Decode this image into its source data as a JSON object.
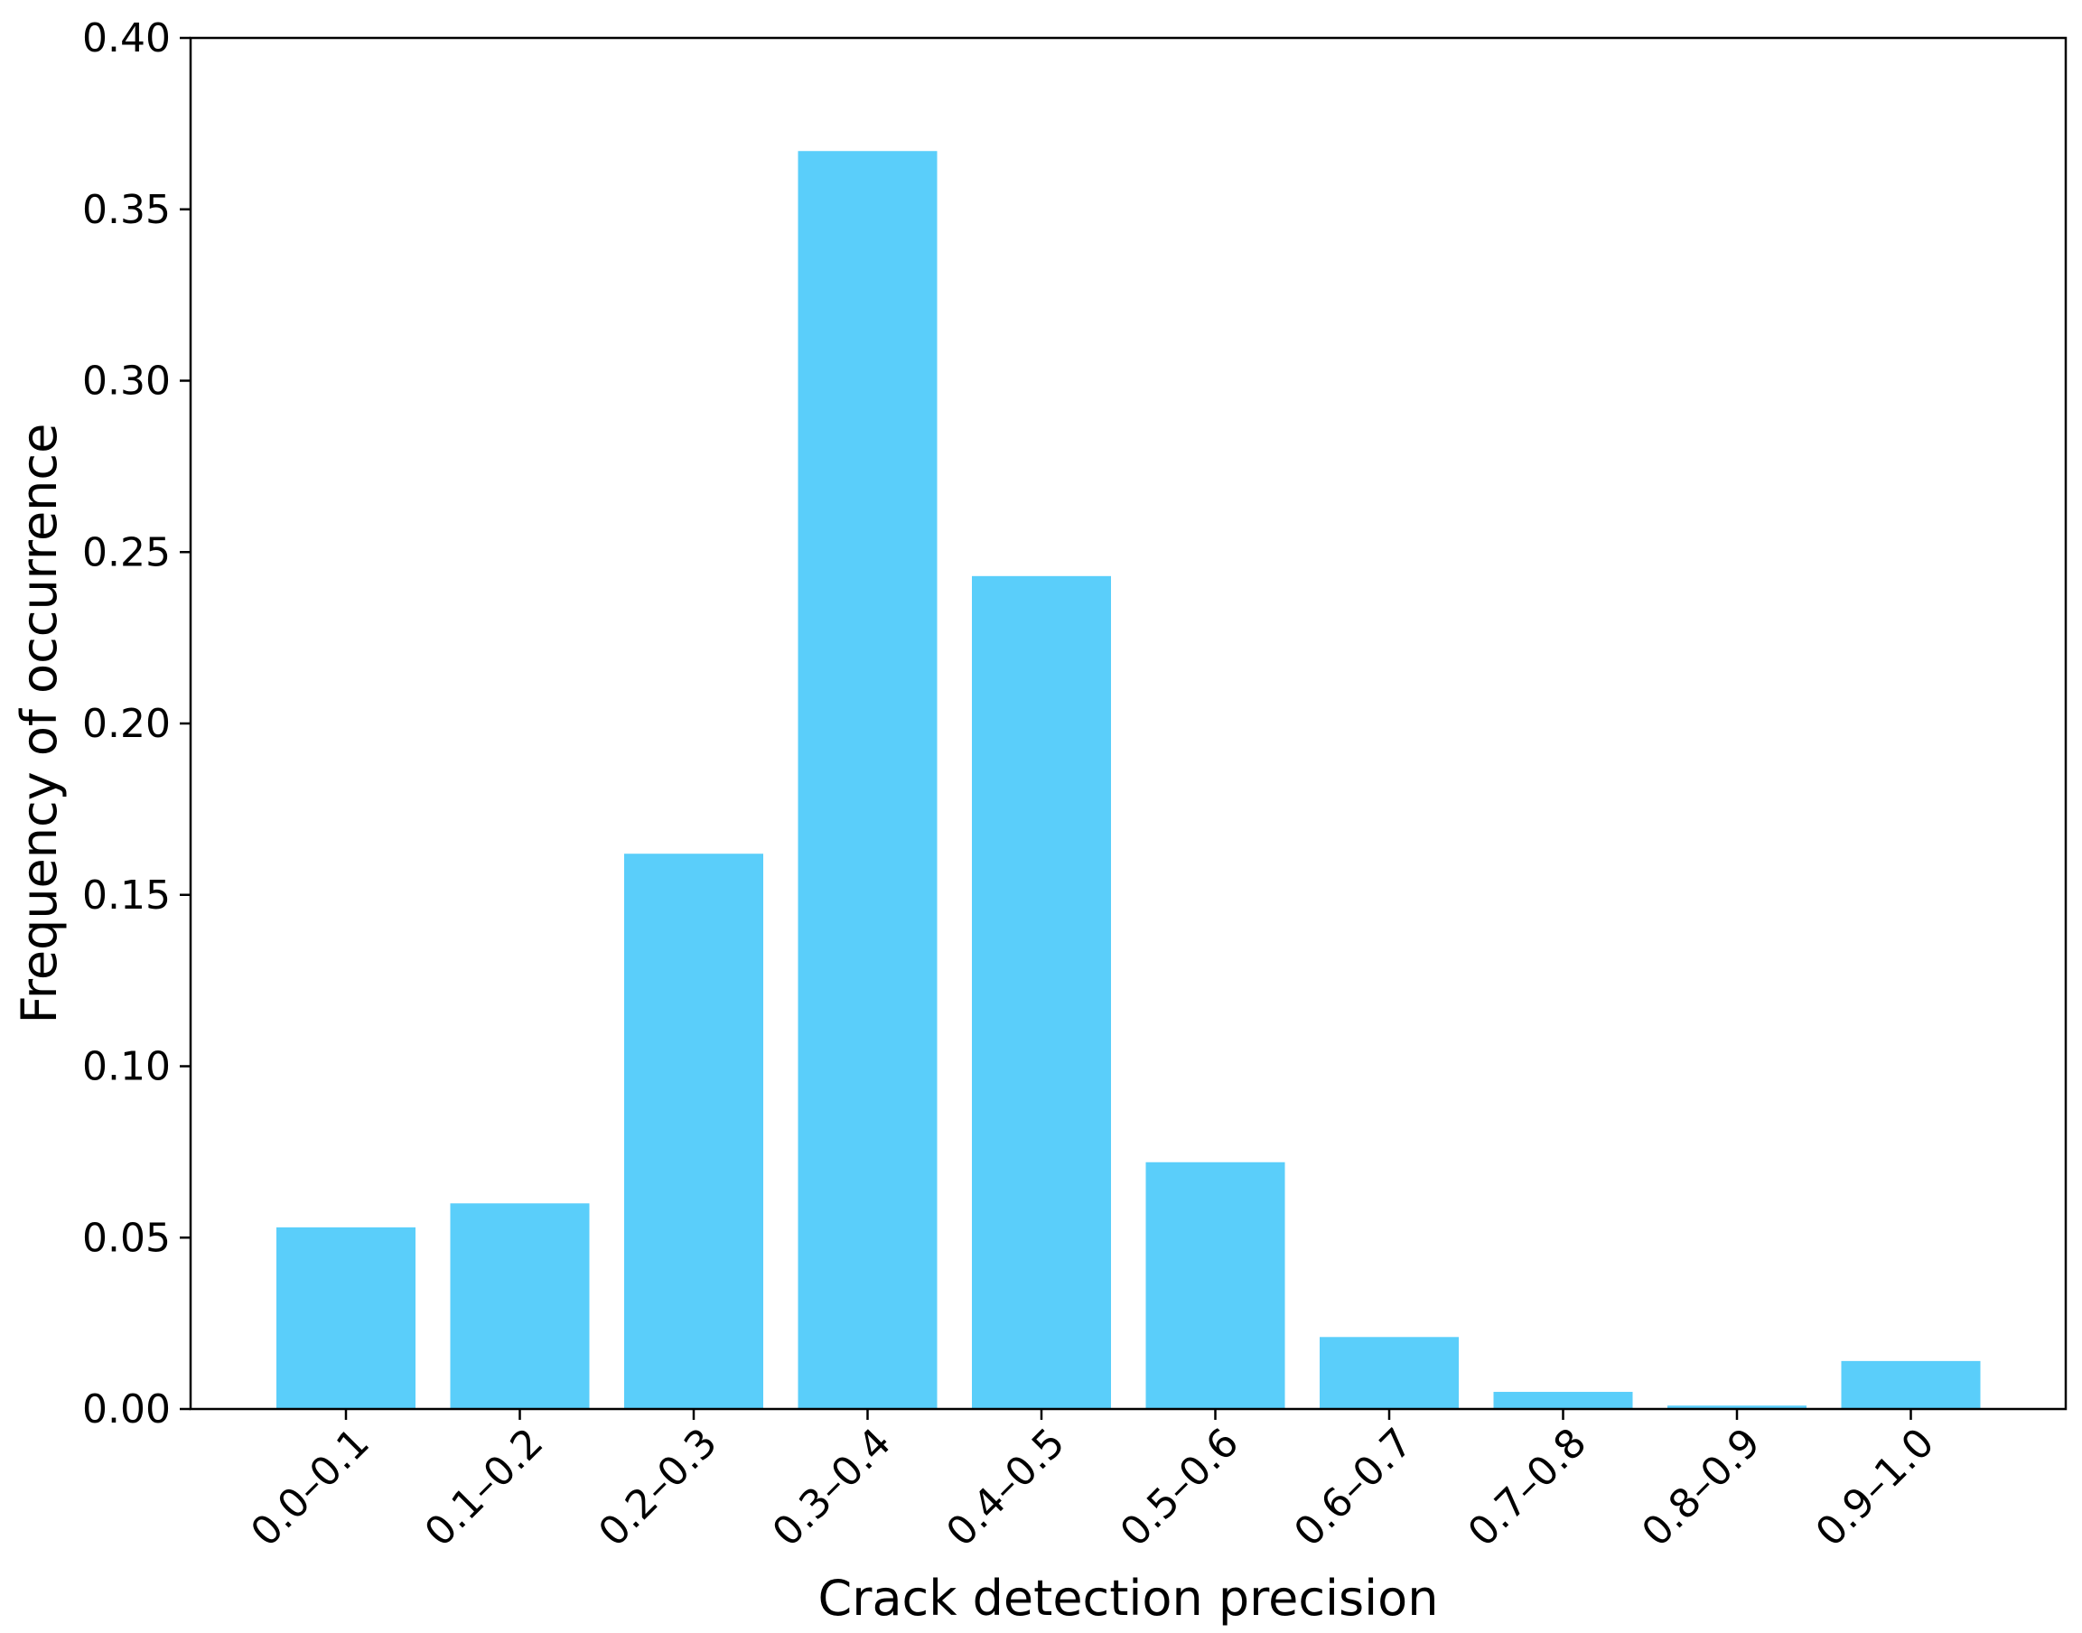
{
  "chart_data": {
    "type": "bar",
    "title": "",
    "xlabel": "Crack detection precision",
    "ylabel": "Frequency of occurrence",
    "categories": [
      "0.0–0.1",
      "0.1–0.2",
      "0.2–0.3",
      "0.3–0.4",
      "0.4–0.5",
      "0.5–0.6",
      "0.6–0.7",
      "0.7–0.8",
      "0.8–0.9",
      "0.9–1.0"
    ],
    "values": [
      0.053,
      0.06,
      0.162,
      0.367,
      0.243,
      0.072,
      0.021,
      0.005,
      0.001,
      0.014
    ],
    "ylim": [
      0,
      0.4
    ],
    "yticks": [
      "0.00",
      "0.05",
      "0.10",
      "0.15",
      "0.20",
      "0.25",
      "0.30",
      "0.35",
      "0.40"
    ],
    "bar_color": "#5ACEFA",
    "grid": false,
    "legend": false
  }
}
